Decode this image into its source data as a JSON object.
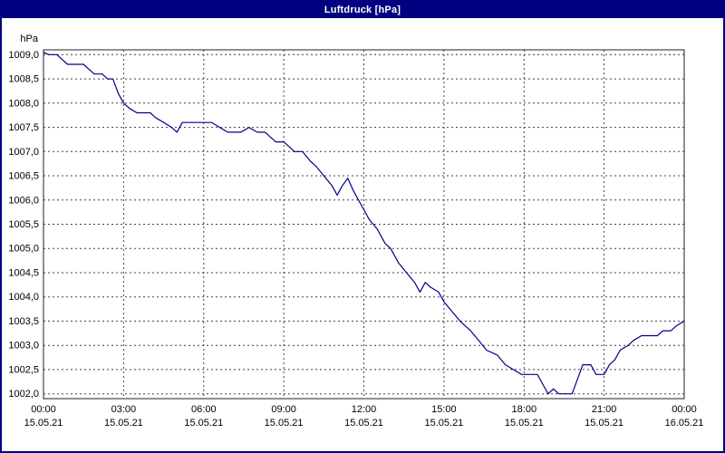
{
  "window": {
    "title": "Luftdruck [hPa]"
  },
  "colors": {
    "titlebar_bg": "#000080",
    "titlebar_text": "#ffffff",
    "plot_background": "#ffffff",
    "grid": "#404040",
    "axis": "#202020",
    "line": "#00008b"
  },
  "chart_data": {
    "type": "line",
    "title": "Luftdruck [hPa]",
    "y_unit_label": "hPa",
    "xlabel": "",
    "ylabel": "hPa",
    "xlim": [
      0,
      24
    ],
    "ylim": [
      1001.9,
      1009.1
    ],
    "grid": true,
    "legend": "none",
    "y_ticks": [
      {
        "value": 1009.0,
        "label": "1009,0"
      },
      {
        "value": 1008.5,
        "label": "1008,5"
      },
      {
        "value": 1008.0,
        "label": "1008,0"
      },
      {
        "value": 1007.5,
        "label": "1007,5"
      },
      {
        "value": 1007.0,
        "label": "1007,0"
      },
      {
        "value": 1006.5,
        "label": "1006,5"
      },
      {
        "value": 1006.0,
        "label": "1006,0"
      },
      {
        "value": 1005.5,
        "label": "1005,5"
      },
      {
        "value": 1005.0,
        "label": "1005,0"
      },
      {
        "value": 1004.5,
        "label": "1004,5"
      },
      {
        "value": 1004.0,
        "label": "1004,0"
      },
      {
        "value": 1003.5,
        "label": "1003,5"
      },
      {
        "value": 1003.0,
        "label": "1003,0"
      },
      {
        "value": 1002.5,
        "label": "1002,5"
      },
      {
        "value": 1002.0,
        "label": "1002,0"
      }
    ],
    "x_ticks": [
      {
        "hour": 0,
        "time": "00:00",
        "date": "15.05.21"
      },
      {
        "hour": 3,
        "time": "03:00",
        "date": "15.05.21"
      },
      {
        "hour": 6,
        "time": "06:00",
        "date": "15.05.21"
      },
      {
        "hour": 9,
        "time": "09:00",
        "date": "15.05.21"
      },
      {
        "hour": 12,
        "time": "12:00",
        "date": "15.05.21"
      },
      {
        "hour": 15,
        "time": "15:00",
        "date": "15.05.21"
      },
      {
        "hour": 18,
        "time": "18:00",
        "date": "15.05.21"
      },
      {
        "hour": 21,
        "time": "21:00",
        "date": "15.05.21"
      },
      {
        "hour": 24,
        "time": "00:00",
        "date": "16.05.21"
      }
    ],
    "series": [
      {
        "name": "Luftdruck",
        "points": [
          [
            0.0,
            1009.05
          ],
          [
            0.2,
            1009.0
          ],
          [
            0.5,
            1009.0
          ],
          [
            0.7,
            1008.9
          ],
          [
            0.9,
            1008.8
          ],
          [
            1.5,
            1008.8
          ],
          [
            1.7,
            1008.7
          ],
          [
            1.9,
            1008.6
          ],
          [
            2.2,
            1008.6
          ],
          [
            2.4,
            1008.5
          ],
          [
            2.6,
            1008.5
          ],
          [
            2.8,
            1008.2
          ],
          [
            3.0,
            1008.0
          ],
          [
            3.2,
            1007.9
          ],
          [
            3.5,
            1007.8
          ],
          [
            4.0,
            1007.8
          ],
          [
            4.2,
            1007.7
          ],
          [
            4.5,
            1007.6
          ],
          [
            4.8,
            1007.5
          ],
          [
            5.0,
            1007.4
          ],
          [
            5.2,
            1007.6
          ],
          [
            6.3,
            1007.6
          ],
          [
            6.6,
            1007.5
          ],
          [
            6.9,
            1007.4
          ],
          [
            7.4,
            1007.4
          ],
          [
            7.7,
            1007.5
          ],
          [
            8.0,
            1007.4
          ],
          [
            8.3,
            1007.4
          ],
          [
            8.5,
            1007.3
          ],
          [
            8.7,
            1007.2
          ],
          [
            9.0,
            1007.2
          ],
          [
            9.2,
            1007.1
          ],
          [
            9.4,
            1007.0
          ],
          [
            9.7,
            1007.0
          ],
          [
            10.0,
            1006.8
          ],
          [
            10.2,
            1006.7
          ],
          [
            10.5,
            1006.5
          ],
          [
            10.8,
            1006.3
          ],
          [
            11.0,
            1006.1
          ],
          [
            11.2,
            1006.3
          ],
          [
            11.4,
            1006.45
          ],
          [
            11.6,
            1006.2
          ],
          [
            11.8,
            1006.0
          ],
          [
            12.0,
            1005.8
          ],
          [
            12.2,
            1005.6
          ],
          [
            12.5,
            1005.4
          ],
          [
            12.8,
            1005.1
          ],
          [
            13.0,
            1005.0
          ],
          [
            13.3,
            1004.7
          ],
          [
            13.6,
            1004.5
          ],
          [
            13.9,
            1004.3
          ],
          [
            14.1,
            1004.1
          ],
          [
            14.3,
            1004.3
          ],
          [
            14.5,
            1004.2
          ],
          [
            14.8,
            1004.1
          ],
          [
            15.0,
            1003.9
          ],
          [
            15.3,
            1003.7
          ],
          [
            15.6,
            1003.5
          ],
          [
            16.0,
            1003.3
          ],
          [
            16.3,
            1003.1
          ],
          [
            16.6,
            1002.9
          ],
          [
            17.0,
            1002.8
          ],
          [
            17.3,
            1002.6
          ],
          [
            17.6,
            1002.5
          ],
          [
            17.9,
            1002.4
          ],
          [
            18.5,
            1002.4
          ],
          [
            18.7,
            1002.2
          ],
          [
            18.9,
            1002.0
          ],
          [
            19.1,
            1002.1
          ],
          [
            19.3,
            1002.0
          ],
          [
            19.8,
            1002.0
          ],
          [
            20.0,
            1002.3
          ],
          [
            20.2,
            1002.6
          ],
          [
            20.5,
            1002.6
          ],
          [
            20.7,
            1002.4
          ],
          [
            21.0,
            1002.4
          ],
          [
            21.2,
            1002.6
          ],
          [
            21.4,
            1002.7
          ],
          [
            21.6,
            1002.9
          ],
          [
            21.9,
            1003.0
          ],
          [
            22.1,
            1003.1
          ],
          [
            22.4,
            1003.2
          ],
          [
            22.7,
            1003.2
          ],
          [
            23.0,
            1003.2
          ],
          [
            23.2,
            1003.3
          ],
          [
            23.5,
            1003.3
          ],
          [
            23.7,
            1003.4
          ],
          [
            24.0,
            1003.5
          ]
        ]
      }
    ]
  }
}
